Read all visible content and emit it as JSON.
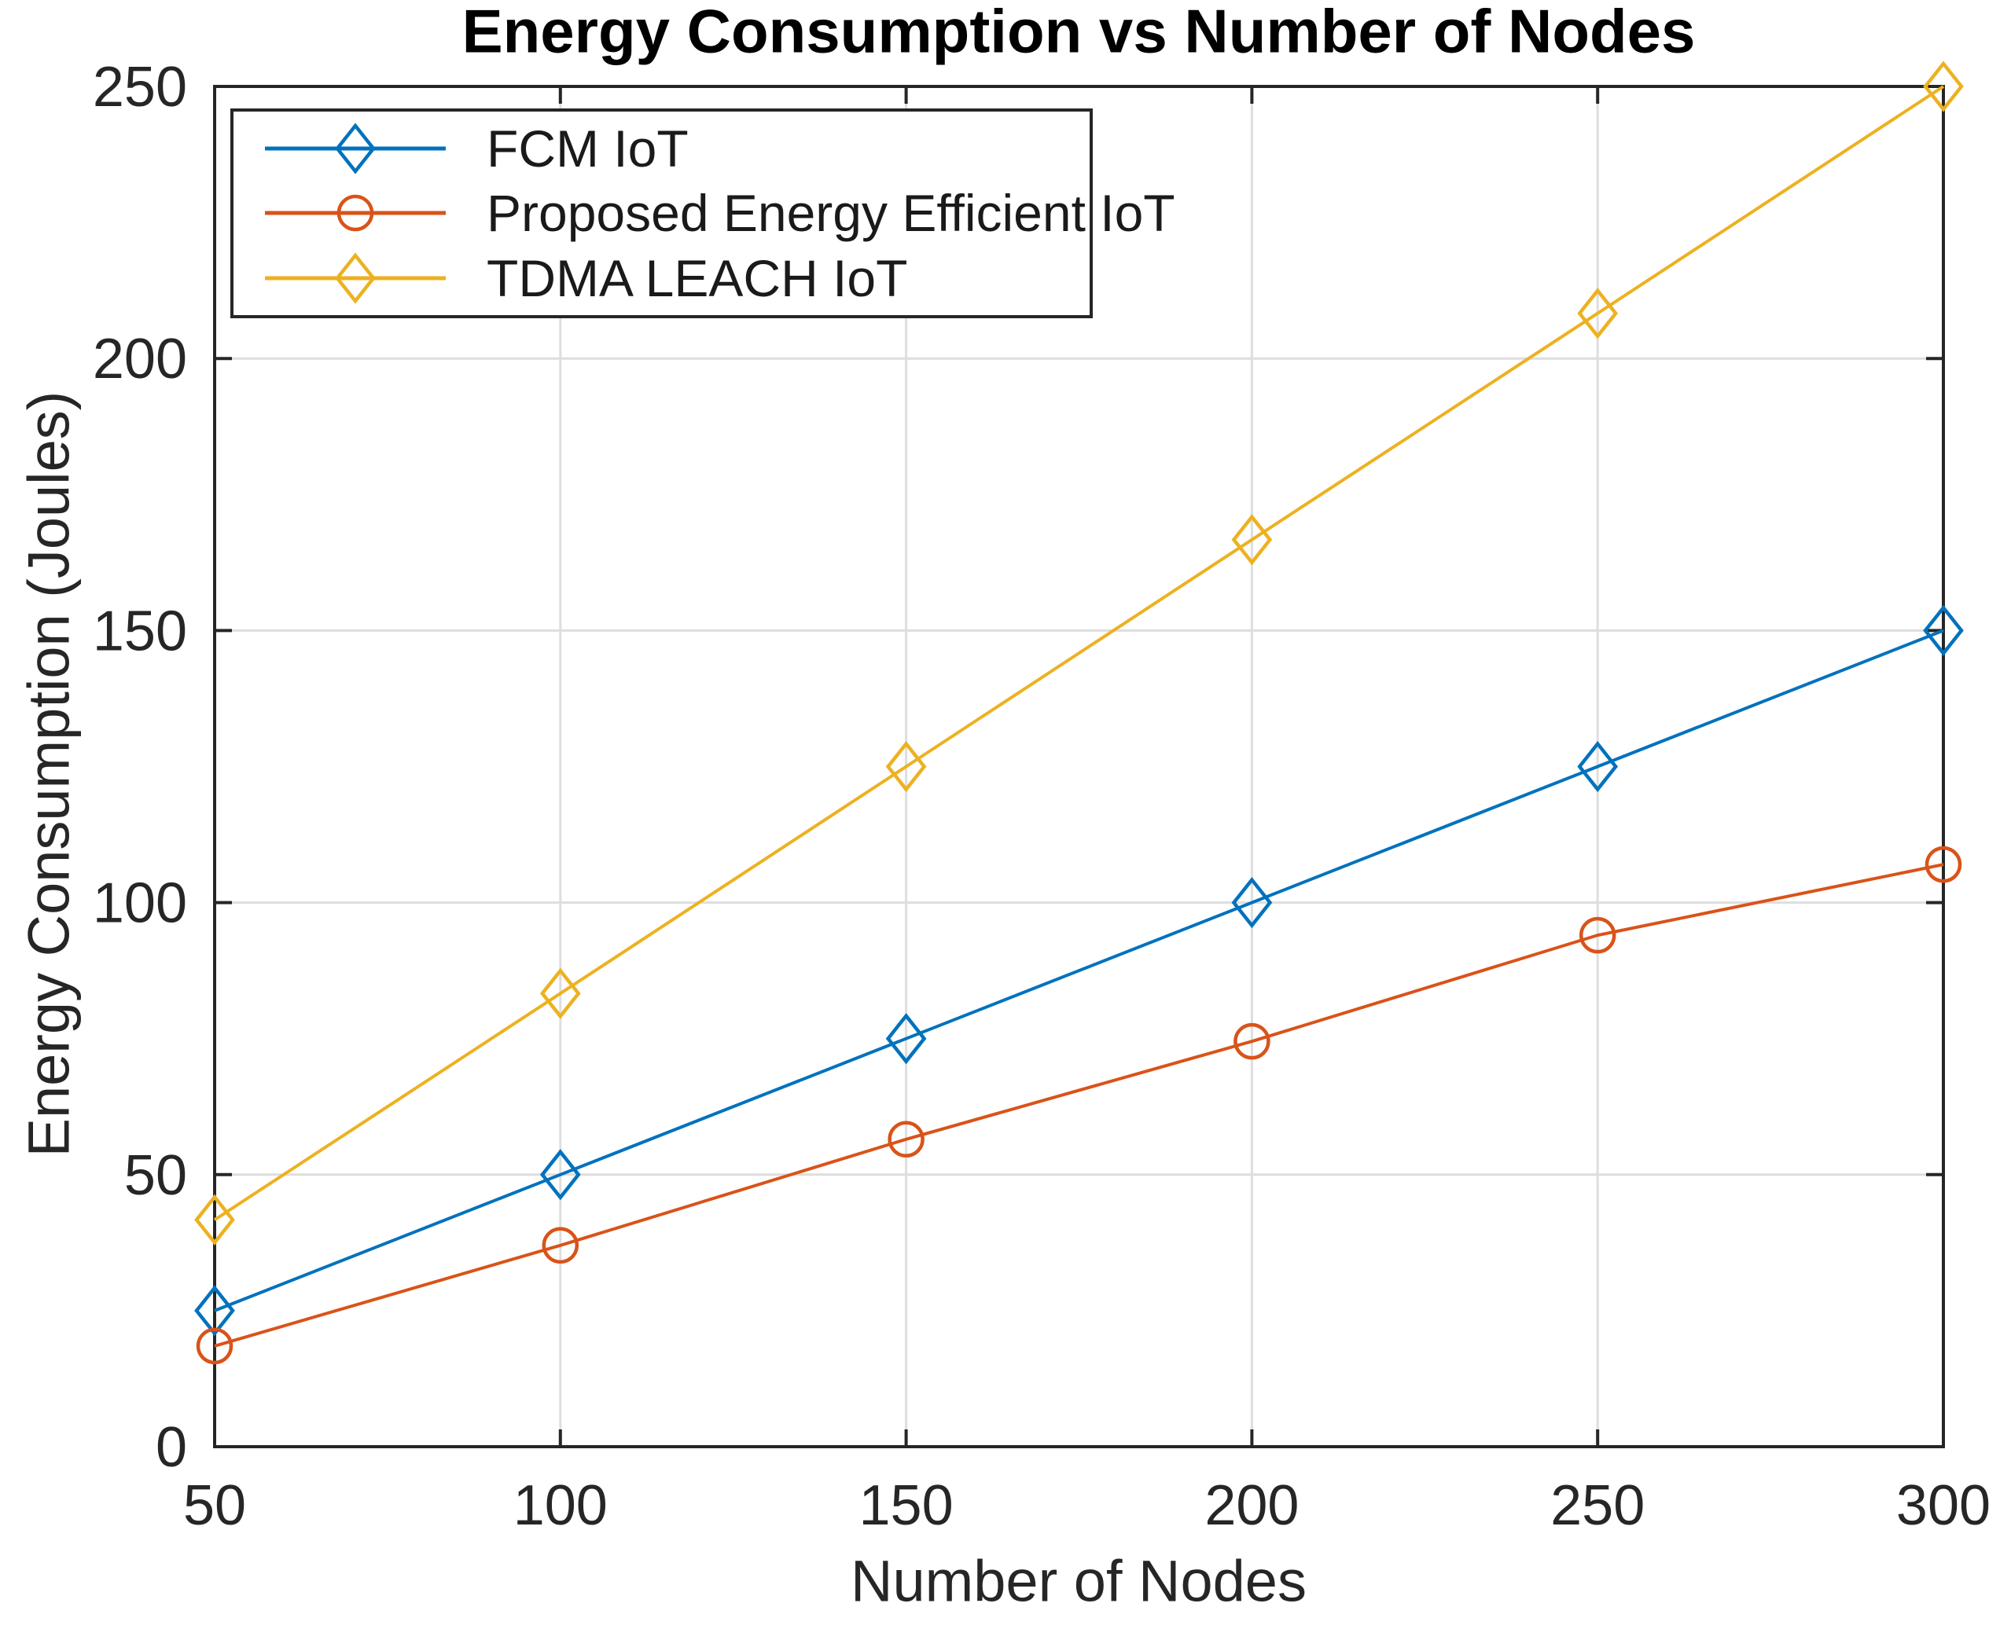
{
  "chart_data": {
    "type": "line",
    "title": "Energy Consumption vs Number of Nodes",
    "xlabel": "Number of Nodes",
    "ylabel": "Energy Consumption (Joules)",
    "x": [
      50,
      100,
      150,
      200,
      250,
      300
    ],
    "xlim": [
      50,
      300
    ],
    "ylim": [
      0,
      250
    ],
    "xticks": [
      50,
      100,
      150,
      200,
      250,
      300
    ],
    "yticks": [
      0,
      50,
      100,
      150,
      200,
      250
    ],
    "grid": true,
    "legend_position": "top-left-inside",
    "series": [
      {
        "name": "FCM IoT",
        "color": "#0072BD",
        "marker": "diamond",
        "values": [
          25,
          50,
          75,
          100,
          125,
          150
        ]
      },
      {
        "name": "Proposed Energy Efficient IoT",
        "color": "#D95319",
        "marker": "circle",
        "values": [
          18.5,
          37,
          56.5,
          74.5,
          94,
          107
        ]
      },
      {
        "name": "TDMA LEACH IoT",
        "color": "#EDB120",
        "marker": "diamond",
        "values": [
          41.7,
          83.3,
          125,
          166.7,
          208.3,
          250
        ]
      }
    ],
    "colors": {
      "axis": "#262626",
      "grid": "#DEDEDE",
      "background": "#FFFFFF"
    }
  }
}
